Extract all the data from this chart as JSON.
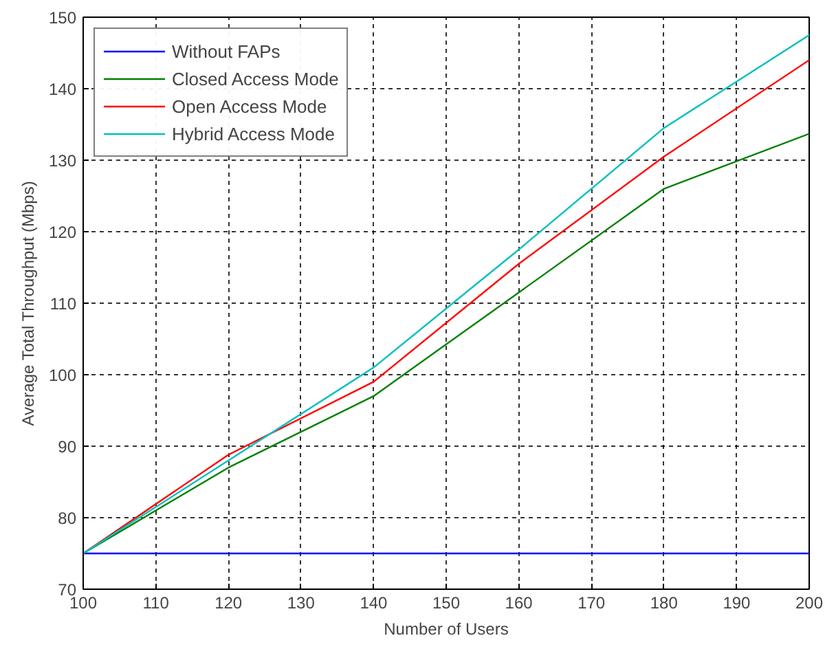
{
  "chart_data": {
    "type": "line",
    "xlabel": "Number of Users",
    "ylabel": "Average Total Throughput (Mbps)",
    "x": [
      100,
      120,
      140,
      160,
      180,
      200
    ],
    "series": [
      {
        "name": "Without FAPs",
        "color": "#0000ff",
        "values": [
          75,
          75,
          75,
          75,
          75,
          75
        ]
      },
      {
        "name": "Closed Access Mode",
        "color": "#008000",
        "values": [
          75,
          87,
          97,
          111.5,
          126,
          133.7
        ]
      },
      {
        "name": "Open Access Mode",
        "color": "#ff0000",
        "values": [
          75,
          88.8,
          99,
          115.5,
          130.5,
          144
        ]
      },
      {
        "name": "Hybrid Access Mode",
        "color": "#00bfbf",
        "values": [
          75,
          88,
          101,
          117.5,
          134.5,
          147.5
        ]
      }
    ],
    "xlim": [
      100,
      200
    ],
    "ylim": [
      70,
      150
    ],
    "xticks": [
      100,
      110,
      120,
      130,
      140,
      150,
      160,
      170,
      180,
      190,
      200
    ],
    "yticks": [
      70,
      80,
      90,
      100,
      110,
      120,
      130,
      140,
      150
    ],
    "grid": true,
    "legend": "top left",
    "marker": "none",
    "line_style": "solid"
  }
}
